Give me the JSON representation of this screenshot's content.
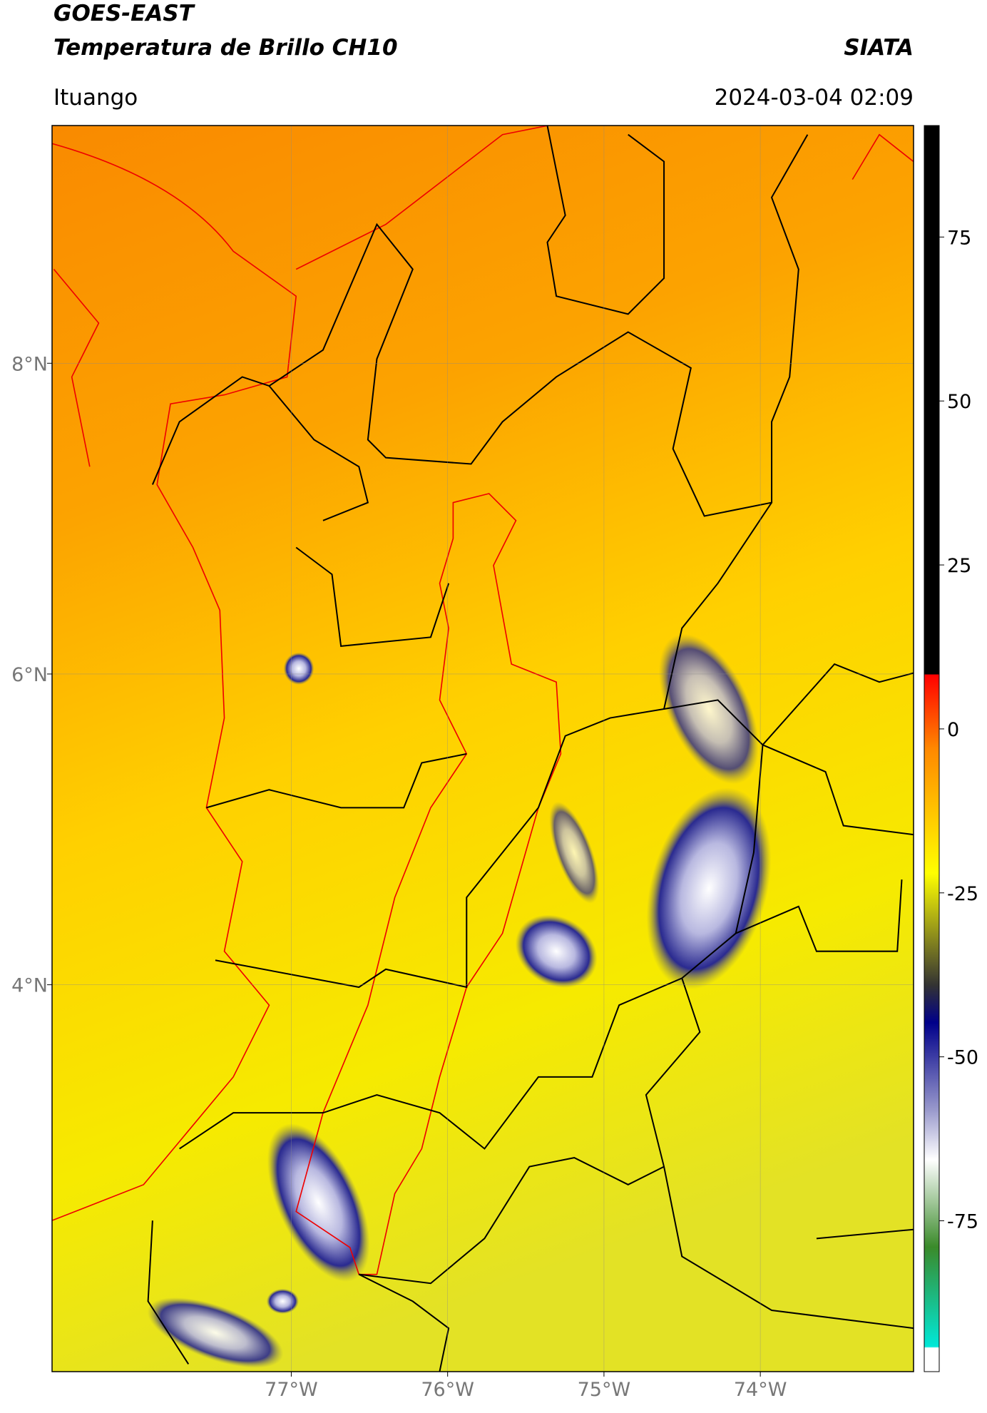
{
  "map": {
    "title": "GOES-EAST",
    "subtitle": "Temperatura de Brillo CH10",
    "source": "SIATA",
    "location": "Ituango",
    "datetime": "2024-03-04 02:09",
    "xlim": [
      -78.53,
      -73.02
    ],
    "ylim": [
      1.51,
      9.53
    ],
    "xticks": [
      {
        "value": -77,
        "label": "77°W"
      },
      {
        "value": -76,
        "label": "76°W"
      },
      {
        "value": -75,
        "label": "75°W"
      },
      {
        "value": -74,
        "label": "74°W"
      }
    ],
    "yticks": [
      {
        "value": 8,
        "label": "8°N"
      },
      {
        "value": 6,
        "label": "6°N"
      },
      {
        "value": 4,
        "label": "4°N"
      }
    ],
    "colorbar": {
      "lim": [
        -98,
        92
      ],
      "ticks": [
        75,
        50,
        25,
        0,
        -25,
        -50,
        -75
      ]
    }
  }
}
